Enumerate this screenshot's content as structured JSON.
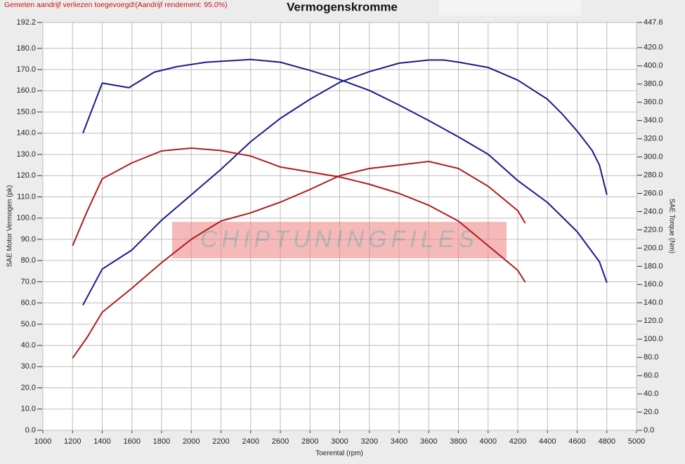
{
  "chart_data": {
    "type": "line",
    "title": "Vermogenskromme",
    "note": "Gemeten aandrijf verliezen toegevoegd!(Aandrijf rendement: 95.0%)",
    "watermark": "CHIPTUNINGFILES",
    "x_label": "Toerental (rpm)",
    "y_label": "SAE Motor Vermogen (pk)",
    "y2_label": "SAE Torque (Nm)",
    "grid": true,
    "xlim": [
      1000,
      5000
    ],
    "xticks": [
      1000,
      1200,
      1400,
      1600,
      1800,
      2000,
      2200,
      2400,
      2600,
      2800,
      3000,
      3200,
      3400,
      3600,
      3800,
      4000,
      4200,
      4400,
      4600,
      4800,
      5000
    ],
    "ylim": [
      0,
      192.2
    ],
    "yticks": [
      {
        "value": 0,
        "label": "0.0"
      },
      {
        "value": 10,
        "label": "10.0"
      },
      {
        "value": 20,
        "label": "20.0"
      },
      {
        "value": 30,
        "label": "30.0"
      },
      {
        "value": 40,
        "label": "40.0"
      },
      {
        "value": 50,
        "label": "50.0"
      },
      {
        "value": 60,
        "label": "60.0"
      },
      {
        "value": 70,
        "label": "70.0"
      },
      {
        "value": 80,
        "label": "80.0"
      },
      {
        "value": 90,
        "label": "90.0"
      },
      {
        "value": 100,
        "label": "100.0"
      },
      {
        "value": 110,
        "label": "110.0"
      },
      {
        "value": 120,
        "label": "120.0"
      },
      {
        "value": 130,
        "label": "130.0"
      },
      {
        "value": 140,
        "label": "140.0"
      },
      {
        "value": 150,
        "label": "150.0"
      },
      {
        "value": 160,
        "label": "160.0"
      },
      {
        "value": 170,
        "label": "170.0"
      },
      {
        "value": 180,
        "label": "180.0"
      },
      192.2
    ],
    "y2lim": [
      0,
      447.6
    ],
    "y2ticks": [
      {
        "value": 0,
        "label": "0.0"
      },
      {
        "value": 20,
        "label": "20.0"
      },
      {
        "value": 40,
        "label": "40.0"
      },
      {
        "value": 60,
        "label": "60.0"
      },
      {
        "value": 80,
        "label": "80.0"
      },
      {
        "value": 100,
        "label": "100.0"
      },
      {
        "value": 120,
        "label": "120.0"
      },
      {
        "value": 140,
        "label": "140.0"
      },
      {
        "value": 160,
        "label": "160.0"
      },
      {
        "value": 180,
        "label": "180.0"
      },
      {
        "value": 200,
        "label": "200.0"
      },
      {
        "value": 220,
        "label": "220.0"
      },
      {
        "value": 240,
        "label": "240.0"
      },
      {
        "value": 260,
        "label": "260.0"
      },
      {
        "value": 280,
        "label": "280.0"
      },
      {
        "value": 300,
        "label": "300.0"
      },
      {
        "value": 320,
        "label": "320.0"
      },
      {
        "value": 340,
        "label": "340.0"
      },
      {
        "value": 360,
        "label": "360.0"
      },
      {
        "value": 380,
        "label": "380.0"
      },
      {
        "value": 400,
        "label": "400.0"
      },
      {
        "value": 420,
        "label": "420.0"
      },
      447.6
    ],
    "series": [
      {
        "color": "#1a1a8c",
        "x": [
          1270,
          1400,
          1600,
          1800,
          2000,
          2200,
          2400,
          2600,
          2800,
          3000,
          3200,
          3400,
          3600,
          3700,
          3800,
          4000,
          4200,
          4400,
          4500,
          4600,
          4700,
          4750,
          4800
        ],
        "values": [
          59,
          76,
          85,
          99,
          111,
          123,
          136,
          147,
          156,
          164,
          169,
          173,
          174.5,
          174.5,
          173.5,
          171,
          165,
          156,
          149,
          141,
          132,
          125,
          111
        ]
      },
      {
        "color": "#b01c1c",
        "x": [
          1200,
          1300,
          1400,
          1600,
          1800,
          2000,
          2200,
          2400,
          2600,
          2800,
          3000,
          3200,
          3400,
          3600,
          3800,
          4000,
          4200,
          4250
        ],
        "values": [
          34,
          44,
          55.6,
          67,
          79,
          90,
          98.6,
          102.5,
          107.5,
          113.5,
          120,
          123.4,
          125,
          126.7,
          123.4,
          115,
          103.5,
          97.6
        ]
      },
      {
        "color": "#1a1a8c",
        "axis": "y2",
        "x": [
          1270,
          1400,
          1580,
          1750,
          1900,
          2100,
          2400,
          2600,
          2800,
          3000,
          3200,
          3400,
          3600,
          3800,
          4000,
          4200,
          4400,
          4600,
          4750,
          4800
        ],
        "values": [
          326,
          381,
          376,
          393,
          399,
          404,
          407,
          404,
          395,
          385,
          373,
          357,
          340,
          322,
          303,
          274,
          250,
          218,
          185,
          162
        ]
      },
      {
        "color": "#b01c1c",
        "axis": "y2",
        "x": [
          1200,
          1300,
          1400,
          1600,
          1800,
          2000,
          2200,
          2400,
          2600,
          2800,
          3000,
          3200,
          3400,
          3600,
          3800,
          4000,
          4200,
          4250
        ],
        "values": [
          202.6,
          241,
          276,
          293.5,
          306.6,
          309.7,
          307,
          301,
          289,
          283.5,
          278,
          270,
          260,
          247,
          229.6,
          202.6,
          175.6,
          162.5
        ]
      }
    ]
  }
}
